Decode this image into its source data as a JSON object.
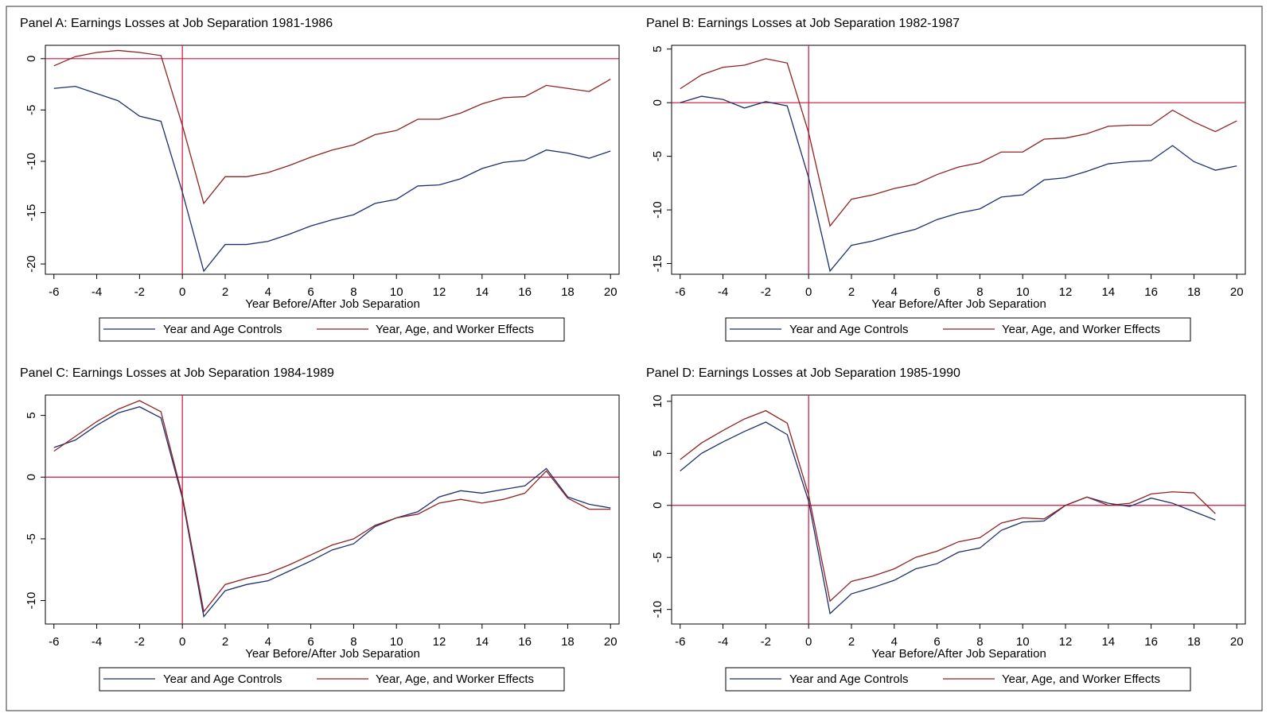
{
  "chart_data": [
    {
      "type": "line",
      "title": "Panel A: Earnings Losses at Job Separation 1981-1986",
      "xlabel": "Year Before/After Job Separation",
      "x": [
        -6,
        -5,
        -4,
        -3,
        -2,
        -1,
        0,
        1,
        2,
        3,
        4,
        5,
        6,
        7,
        8,
        9,
        10,
        11,
        12,
        13,
        14,
        15,
        16,
        17,
        18,
        19,
        20
      ],
      "series": [
        {
          "name": "Year and Age Controls",
          "color": "#1f2f6e",
          "values": [
            -2.9,
            -2.7,
            -3.4,
            -4.1,
            -5.6,
            -6.1,
            -13.0,
            -20.7,
            -18.1,
            -18.1,
            -17.8,
            -17.1,
            -16.3,
            -15.7,
            -15.2,
            -14.1,
            -13.7,
            -12.4,
            -12.3,
            -11.7,
            -10.7,
            -10.1,
            -9.9,
            -8.9,
            -9.2,
            -9.7,
            -9.0
          ]
        },
        {
          "name": "Year, Age, and Worker Effects",
          "color": "#8e2323",
          "values": [
            -0.7,
            0.2,
            0.6,
            0.8,
            0.6,
            0.3,
            -6.5,
            -14.1,
            -11.5,
            -11.5,
            -11.1,
            -10.4,
            -9.6,
            -8.9,
            -8.4,
            -7.4,
            -7.0,
            -5.9,
            -5.9,
            -5.3,
            -4.4,
            -3.8,
            -3.7,
            -2.6,
            -2.9,
            -3.2,
            -2.0
          ]
        }
      ],
      "xlim": [
        -6.4,
        20.4
      ],
      "ylim": [
        -21,
        1.3
      ],
      "xticks": [
        -6,
        -4,
        -2,
        0,
        2,
        4,
        6,
        8,
        10,
        12,
        14,
        16,
        18,
        20
      ],
      "yticks": [
        0,
        -5,
        -10,
        -15,
        -20
      ],
      "hline": 0,
      "vline": 0,
      "refline_color": "#d1103c"
    },
    {
      "type": "line",
      "title": "Panel B: Earnings Losses at Job Separation 1982-1987",
      "xlabel": "Year Before/After Job Separation",
      "x": [
        -6,
        -5,
        -4,
        -3,
        -2,
        -1,
        0,
        1,
        2,
        3,
        4,
        5,
        6,
        7,
        8,
        9,
        10,
        11,
        12,
        13,
        14,
        15,
        16,
        17,
        18,
        19,
        20
      ],
      "series": [
        {
          "name": "Year and Age Controls",
          "color": "#1f2f6e",
          "values": [
            0,
            0.6,
            0.3,
            -0.5,
            0.1,
            -0.3,
            -7.0,
            -15.7,
            -13.3,
            -12.9,
            -12.3,
            -11.8,
            -10.9,
            -10.3,
            -9.9,
            -8.8,
            -8.6,
            -7.2,
            -7.0,
            -6.4,
            -5.7,
            -5.5,
            -5.4,
            -4.0,
            -5.5,
            -6.3,
            -5.9
          ]
        },
        {
          "name": "Year, Age, and Worker Effects",
          "color": "#8e2323",
          "values": [
            1.3,
            2.6,
            3.3,
            3.5,
            4.1,
            3.7,
            -2.8,
            -11.5,
            -9.0,
            -8.6,
            -8.0,
            -7.6,
            -6.7,
            -6.0,
            -5.6,
            -4.6,
            -4.6,
            -3.4,
            -3.3,
            -2.9,
            -2.2,
            -2.1,
            -2.1,
            -0.7,
            -1.8,
            -2.7,
            -1.7
          ]
        }
      ],
      "xlim": [
        -6.4,
        20.4
      ],
      "ylim": [
        -16,
        5.35
      ],
      "xticks": [
        -6,
        -4,
        -2,
        0,
        2,
        4,
        6,
        8,
        10,
        12,
        14,
        16,
        18,
        20
      ],
      "yticks": [
        5,
        0,
        -5,
        -10,
        -15
      ],
      "hline": 0,
      "vline": 0,
      "refline_color": "#d1103c"
    },
    {
      "type": "line",
      "title": "Panel C: Earnings Losses at Job Separation 1984-1989",
      "xlabel": "Year Before/After Job Separation",
      "x": [
        -6,
        -5,
        -4,
        -3,
        -2,
        -1,
        0,
        1,
        2,
        3,
        4,
        5,
        6,
        7,
        8,
        9,
        10,
        11,
        12,
        13,
        14,
        15,
        16,
        17,
        18,
        19,
        20
      ],
      "series": [
        {
          "name": "Year and Age Controls",
          "color": "#1f2f6e",
          "values": [
            2.4,
            3.0,
            4.2,
            5.2,
            5.7,
            4.8,
            -1.7,
            -11.3,
            -9.2,
            -8.7,
            -8.4,
            -7.6,
            -6.8,
            -5.9,
            -5.4,
            -4.0,
            -3.3,
            -2.8,
            -1.6,
            -1.1,
            -1.3,
            -1.0,
            -0.7,
            0.7,
            -1.6,
            -2.2,
            -2.5
          ]
        },
        {
          "name": "Year, Age, and Worker Effects",
          "color": "#8e2323",
          "values": [
            2.1,
            3.3,
            4.5,
            5.5,
            6.2,
            5.3,
            -1.5,
            -10.9,
            -8.7,
            -8.2,
            -7.8,
            -7.1,
            -6.3,
            -5.5,
            -5.0,
            -3.9,
            -3.3,
            -3.0,
            -2.1,
            -1.8,
            -2.1,
            -1.8,
            -1.3,
            0.5,
            -1.7,
            -2.6,
            -2.6
          ]
        }
      ],
      "xlim": [
        -6.4,
        20.4
      ],
      "ylim": [
        -11.9,
        6.65
      ],
      "xticks": [
        -6,
        -4,
        -2,
        0,
        2,
        4,
        6,
        8,
        10,
        12,
        14,
        16,
        18,
        20
      ],
      "yticks": [
        5,
        0,
        -5,
        -10
      ],
      "hline": 0,
      "vline": 0,
      "refline_color": "#d1103c"
    },
    {
      "type": "line",
      "title": "Panel D: Earnings Losses at Job Separation 1985-1990",
      "xlabel": "Year Before/After Job Separation",
      "x": [
        -6,
        -5,
        -4,
        -3,
        -2,
        -1,
        0,
        1,
        2,
        3,
        4,
        5,
        6,
        7,
        8,
        9,
        10,
        11,
        12,
        13,
        14,
        15,
        16,
        17,
        18,
        19
      ],
      "series": [
        {
          "name": "Year and Age Controls",
          "color": "#1f2f6e",
          "values": [
            3.3,
            5.0,
            6.1,
            7.1,
            8.0,
            6.8,
            0.4,
            -10.4,
            -8.5,
            -7.9,
            -7.2,
            -6.1,
            -5.6,
            -4.5,
            -4.1,
            -2.4,
            -1.6,
            -1.5,
            0.0,
            0.8,
            0.2,
            -0.1,
            0.7,
            0.2,
            -0.6,
            -1.4
          ]
        },
        {
          "name": "Year, Age, and Worker Effects",
          "color": "#8e2323",
          "values": [
            4.4,
            6.0,
            7.2,
            8.3,
            9.1,
            7.9,
            1.0,
            -9.2,
            -7.3,
            -6.8,
            -6.1,
            -5.0,
            -4.4,
            -3.5,
            -3.1,
            -1.7,
            -1.2,
            -1.3,
            0.0,
            0.8,
            0.0,
            0.2,
            1.1,
            1.3,
            1.2,
            -0.8
          ]
        }
      ],
      "xlim": [
        -6.4,
        20.4
      ],
      "ylim": [
        -11.4,
        10.6
      ],
      "xticks": [
        -6,
        -4,
        -2,
        0,
        2,
        4,
        6,
        8,
        10,
        12,
        14,
        16,
        18,
        20
      ],
      "yticks": [
        10,
        5,
        0,
        -5,
        -10
      ],
      "hline": 0,
      "vline": 0,
      "refline_color": "#d1103c"
    }
  ]
}
